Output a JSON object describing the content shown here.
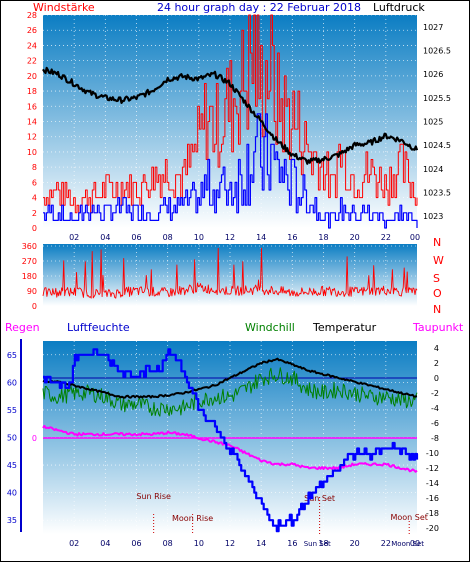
{
  "header": {
    "left_label": "Windstärke",
    "title": "24 hour graph day : 22 Februar 2018",
    "right_label": "Luftdruck"
  },
  "colors": {
    "wind_avg": "#0000ff",
    "wind_gust": "#ff0000",
    "pressure": "#000000",
    "direction": "#ff0000",
    "humidity": "#0000ff",
    "windchill": "#008000",
    "temperature": "#000000",
    "dewpoint": "#ff00ff",
    "rain": "#ff00ff",
    "plot_top": "#0b7dc3",
    "plot_bottom": "#ffffff"
  },
  "chart_data": [
    {
      "type": "line",
      "title": "24 hour graph day : 22 Februar 2018",
      "xlabel": "",
      "x_ticks": [
        "02",
        "04",
        "06",
        "08",
        "10",
        "12",
        "14",
        "16",
        "18",
        "20",
        "22",
        "00"
      ],
      "y_left_label": "Windstärke",
      "y_left_ticks": [
        "0",
        "2",
        "4",
        "6",
        "8",
        "10",
        "12",
        "14",
        "16",
        "18",
        "20",
        "22",
        "24",
        "26",
        "28"
      ],
      "ylim_left": [
        0,
        28
      ],
      "y_right_label": "Luftdruck",
      "y_right_ticks": [
        "1023",
        "1023.5",
        "1024",
        "1024.5",
        "1025",
        "1025.5",
        "1026",
        "1026.5",
        "1027"
      ],
      "ylim_right": [
        1022.75,
        1027.25
      ],
      "grid": true,
      "series": [
        {
          "name": "Windstärke",
          "axis": "left",
          "x": [
            0,
            1,
            2,
            3,
            4,
            5,
            6,
            7,
            8,
            9,
            10,
            10.5,
            11,
            12,
            13,
            13.5,
            14,
            14.5,
            15,
            16,
            17,
            18,
            18.5,
            19,
            20,
            21,
            22,
            23,
            24
          ],
          "values": [
            2,
            2,
            1,
            3,
            2,
            3,
            2,
            2,
            3,
            3,
            4,
            6,
            5,
            6,
            8,
            11,
            9,
            10,
            8,
            6,
            4,
            2,
            1,
            3,
            2,
            2,
            1,
            2,
            1
          ]
        },
        {
          "name": "Böen",
          "axis": "left",
          "x": [
            0,
            1,
            2,
            3,
            4,
            5,
            6,
            7,
            8,
            9,
            10,
            10.5,
            11,
            12,
            13,
            13.5,
            14,
            14.5,
            15,
            16,
            17,
            18,
            18.5,
            19,
            20,
            21,
            22,
            23,
            24
          ],
          "values": [
            5,
            6,
            4,
            5,
            6,
            7,
            6,
            8,
            9,
            8,
            14,
            18,
            16,
            20,
            24,
            28,
            22,
            26,
            20,
            18,
            12,
            10,
            6,
            12,
            8,
            9,
            7,
            10,
            5
          ]
        },
        {
          "name": "Luftdruck",
          "axis": "right",
          "x": [
            0,
            1,
            2,
            3,
            4,
            5,
            6,
            7,
            8,
            9,
            10,
            11,
            12,
            13,
            14,
            15,
            16,
            17,
            18,
            19,
            20,
            21,
            22,
            23,
            24
          ],
          "values": [
            1026.1,
            1026.0,
            1025.8,
            1025.6,
            1025.5,
            1025.45,
            1025.5,
            1025.65,
            1025.9,
            1025.95,
            1025.9,
            1026.0,
            1025.8,
            1025.4,
            1025.0,
            1024.6,
            1024.3,
            1024.15,
            1024.2,
            1024.3,
            1024.5,
            1024.55,
            1024.7,
            1024.6,
            1024.4
          ]
        }
      ]
    },
    {
      "type": "line",
      "xlabel": "",
      "y_left_ticks": [
        "0",
        "90",
        "180",
        "270",
        "360"
      ],
      "ylim": [
        0,
        360
      ],
      "right_labels": [
        "N",
        "W",
        "S",
        "O",
        "N"
      ],
      "grid": true,
      "series": [
        {
          "name": "Windrichtung",
          "x": [
            0,
            2,
            4,
            6,
            8,
            10,
            12,
            14,
            16,
            18,
            20,
            22,
            24
          ],
          "values": [
            80,
            85,
            70,
            90,
            80,
            110,
            90,
            100,
            80,
            90,
            85,
            95,
            80
          ]
        }
      ]
    },
    {
      "type": "line",
      "xlabel": "",
      "x_ticks": [
        "02",
        "04",
        "06",
        "08",
        "10",
        "12",
        "14",
        "16",
        "18",
        "20",
        "22",
        "00"
      ],
      "legend": [
        "Regen",
        "Luftfeuchte",
        "Windchill",
        "Temperatur",
        "Taupunkt"
      ],
      "y_left_ticks": [
        "35",
        "40",
        "45",
        "50",
        "55",
        "60",
        "65"
      ],
      "ylim_left": [
        32.5,
        67.5
      ],
      "y_rain_ticks": [
        "0"
      ],
      "y_right_ticks": [
        "4",
        "2",
        "0",
        "-2",
        "-4",
        "-6",
        "-8",
        "-10",
        "-12",
        "-14",
        "-16",
        "-18",
        "-20"
      ],
      "ylim_right": [
        -20,
        4
      ],
      "grid": true,
      "annotations": [
        {
          "label": "Sun Rise",
          "x": 7.1
        },
        {
          "label": "Moon Rise",
          "x": 9.6
        },
        {
          "label": "Sun Set",
          "x": 17.75
        },
        {
          "label": "Moon Set",
          "x": 23.5
        }
      ],
      "bottom_markers": [
        "Sun Set",
        "Moon Set"
      ],
      "series": [
        {
          "name": "Luftfeuchte",
          "axis": "left",
          "x": [
            0,
            1.8,
            2,
            3,
            4,
            5,
            6,
            7.5,
            8,
            9,
            10,
            11,
            12,
            13,
            14,
            15,
            16,
            17,
            18,
            19,
            20,
            21,
            22,
            23,
            24
          ],
          "values": [
            60,
            60,
            65,
            65,
            65,
            62,
            62,
            62,
            66,
            62,
            55,
            52,
            48,
            43,
            38,
            34,
            35,
            39,
            42,
            45,
            47,
            47,
            48,
            48,
            46
          ]
        },
        {
          "name": "Windchill",
          "axis": "right",
          "x": [
            0,
            1,
            2,
            3,
            4,
            5,
            6,
            7,
            8,
            9,
            10,
            11,
            12,
            13,
            14,
            15,
            16,
            17,
            18,
            19,
            20,
            21,
            22,
            23,
            24
          ],
          "values": [
            -2,
            -2.5,
            -2,
            -2,
            -2.5,
            -3.5,
            -3.5,
            -4,
            -4,
            -4,
            -3,
            -2.5,
            -2.5,
            -1.5,
            0,
            0.5,
            0,
            -1.5,
            -2,
            -1.5,
            -2,
            -2.5,
            -2.5,
            -3,
            -3
          ]
        },
        {
          "name": "Temperatur",
          "axis": "right",
          "x": [
            0,
            1,
            2,
            3,
            4,
            5,
            6,
            7,
            8,
            9,
            10,
            11,
            12,
            13,
            14,
            15,
            16,
            17,
            18,
            19,
            20,
            21,
            22,
            23,
            24
          ],
          "values": [
            -0.5,
            -0.5,
            -1,
            -1.5,
            -2,
            -2.5,
            -2.5,
            -2.5,
            -2.3,
            -2,
            -1.5,
            -1,
            0,
            1,
            2,
            2.5,
            1.8,
            1,
            0.5,
            0,
            -0.5,
            -1,
            -1.5,
            -2,
            -2.5
          ]
        },
        {
          "name": "Taupunkt",
          "axis": "right",
          "x": [
            0,
            1,
            2,
            3,
            4,
            5,
            6,
            7,
            8,
            9,
            10,
            11,
            12,
            13,
            14,
            15,
            16,
            17,
            18,
            19,
            20,
            21,
            22,
            23,
            24
          ],
          "values": [
            -6.5,
            -7,
            -7.5,
            -7.5,
            -7.5,
            -7.5,
            -7.5,
            -7.5,
            -7.3,
            -7.5,
            -8,
            -8.5,
            -9,
            -10,
            -11,
            -11.5,
            -11.5,
            -12,
            -12,
            -12,
            -11.5,
            -11.5,
            -11.5,
            -12,
            -12.5
          ]
        },
        {
          "name": "Regen",
          "axis": "rain",
          "x": [
            0,
            24
          ],
          "values": [
            0,
            0
          ]
        }
      ]
    }
  ]
}
